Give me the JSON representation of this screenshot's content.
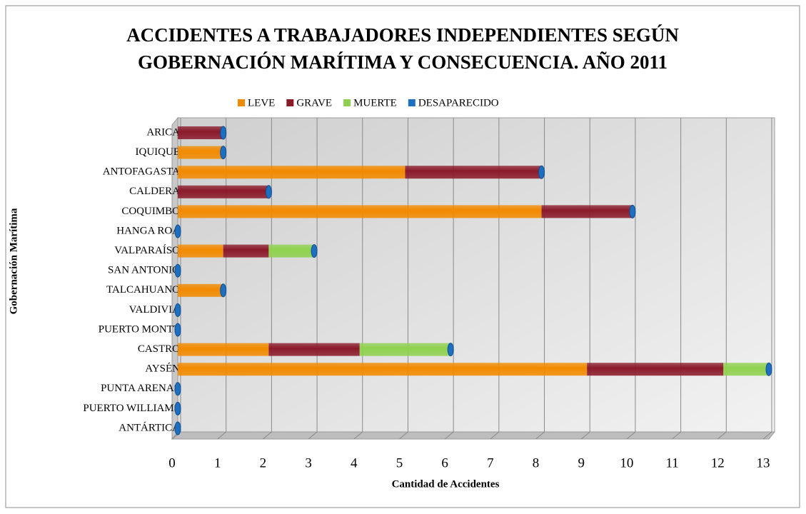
{
  "chart_data": {
    "type": "bar",
    "orientation": "horizontal",
    "stacked": true,
    "title": [
      "ACCIDENTES A TRABAJADORES INDEPENDIENTES  SEGÚN",
      "GOBERNACIÓN MARÍTIMA Y CONSECUENCIA. AÑO 2011"
    ],
    "x_label": "Cantidad de Accidentes",
    "y_label": "Gobernación Marítima",
    "categories": [
      "ARICA",
      "IQUIQUE",
      "ANTOFAGASTA",
      "CALDERA",
      "COQUIMBO",
      "HANGA ROA",
      "VALPARAÍSO",
      "SAN ANTONIO",
      "TALCAHUANO",
      "VALDIVIA",
      "PUERTO MONTT",
      "CASTRO",
      "AYSÉN",
      "PUNTA ARENAS",
      "PUERTO WILLIAMS",
      "ANTÁRTICA"
    ],
    "series": [
      {
        "name": "LEVE",
        "color": "#f28a00",
        "values": [
          0,
          1,
          5,
          0,
          8,
          0,
          1,
          0,
          1,
          0,
          0,
          2,
          9,
          0,
          0,
          0
        ]
      },
      {
        "name": "GRAVE",
        "color": "#8b1a2a",
        "values": [
          1,
          0,
          3,
          2,
          2,
          0,
          1,
          0,
          0,
          0,
          0,
          2,
          3,
          0,
          0,
          0
        ]
      },
      {
        "name": "MUERTE",
        "color": "#8fd14f",
        "values": [
          0,
          0,
          0,
          0,
          0,
          0,
          1,
          0,
          0,
          0,
          0,
          2,
          1,
          0,
          0,
          0
        ]
      },
      {
        "name": "DESAPARECIDO",
        "color": "#1f6fc0",
        "values": [
          0,
          0,
          0,
          0,
          0,
          0,
          0,
          0,
          0,
          0,
          0,
          0,
          0,
          0,
          0,
          0
        ]
      }
    ],
    "xlim": [
      0,
      13
    ],
    "xticks": [
      0,
      1,
      2,
      3,
      4,
      5,
      6,
      7,
      8,
      9,
      10,
      11,
      12,
      13
    ],
    "grid": true,
    "legend": "top"
  }
}
